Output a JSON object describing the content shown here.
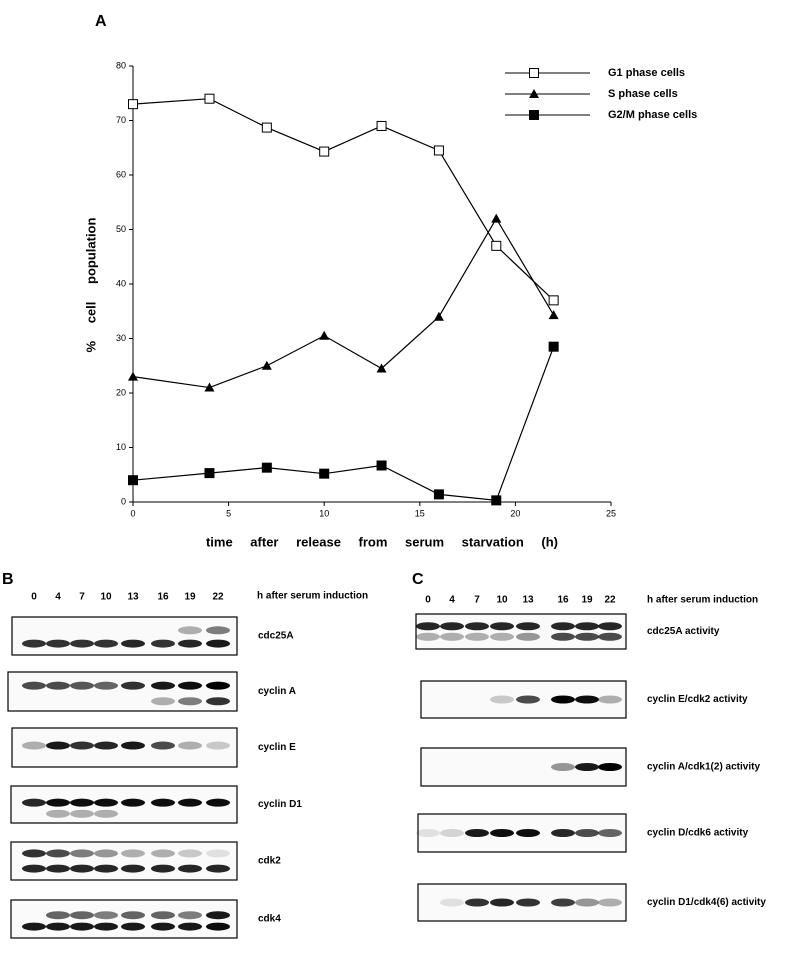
{
  "chart_data": {
    "type": "line",
    "panel_label": "A",
    "x_label": "time after release from serum starvation (h)",
    "y_label": "% cell population",
    "x": [
      0,
      4,
      7,
      10,
      13,
      16,
      19,
      22
    ],
    "series": [
      {
        "name": "G1 phase cells",
        "color": "#000000",
        "marker": "square-open",
        "values": [
          73,
          74,
          68.7,
          64.3,
          69,
          64.5,
          47,
          37
        ]
      },
      {
        "name": "S phase cells",
        "color": "#000000",
        "marker": "triangle",
        "values": [
          23,
          21,
          25,
          30.5,
          24.5,
          34,
          52,
          34.3
        ]
      },
      {
        "name": "G2/M phase cells",
        "color": "#000000",
        "marker": "square",
        "values": [
          4,
          5.3,
          6.3,
          5.2,
          6.7,
          1.4,
          0.3,
          28.5
        ]
      }
    ],
    "xlim": [
      0,
      25
    ],
    "xticks": [
      0,
      5,
      10,
      15,
      20,
      25
    ],
    "ylim": [
      0,
      80
    ],
    "yticks": [
      0,
      10,
      20,
      30,
      40,
      50,
      60,
      70,
      80
    ],
    "grid": false,
    "legend": "upper right"
  },
  "panel_b": {
    "label": "B",
    "lanes": [
      "0",
      "4",
      "7",
      "10",
      "13",
      "16",
      "19",
      "22"
    ],
    "lanes_caption": "h after serum induction",
    "blots": [
      "cdc25A",
      "cyclin A",
      "cyclin E",
      "cyclin D1",
      "cdk2",
      "cdk4"
    ]
  },
  "panel_c": {
    "label": "C",
    "lanes": [
      "0",
      "4",
      "7",
      "10",
      "13",
      "16",
      "19",
      "22"
    ],
    "lanes_caption": "h after serum induction",
    "blots": [
      "cdc25A activity",
      "cyclin E/cdk2 activity",
      "cyclin A/cdk1(2) activity",
      "cyclin D/cdk6  activity",
      "cyclin D1/cdk4(6)  activity"
    ]
  }
}
